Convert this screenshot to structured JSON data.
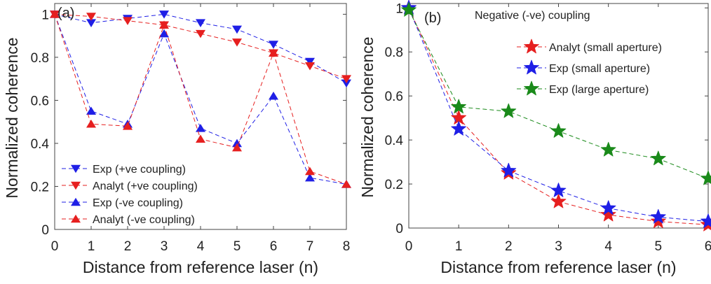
{
  "chart_data": [
    {
      "type": "line",
      "panel_label": "(a)",
      "title": "",
      "xlabel": "Distance from reference laser (n)",
      "ylabel": "Normalized coherence",
      "xlim": [
        0,
        8
      ],
      "ylim": [
        0,
        1.05
      ],
      "x_ticks": [
        0,
        1,
        2,
        3,
        4,
        5,
        6,
        7,
        8
      ],
      "y_ticks": [
        0,
        0.2,
        0.4,
        0.6,
        0.8,
        1
      ],
      "y_tick_labels": [
        "0",
        "0.2",
        "0.4",
        "0.6",
        "0.8",
        "1"
      ],
      "grid": false,
      "legend_position": "bottom-left",
      "x": [
        0,
        1,
        2,
        3,
        4,
        5,
        6,
        7,
        8
      ],
      "series": [
        {
          "name": "Exp (+ve coupling)",
          "color": "#1f1fe6",
          "marker": "triangle-down",
          "values": [
            1.0,
            0.96,
            0.98,
            1.0,
            0.96,
            0.93,
            0.86,
            0.78,
            0.68
          ]
        },
        {
          "name": "Analyt (+ve coupling)",
          "color": "#e61f1f",
          "marker": "triangle-down",
          "values": [
            1.0,
            0.99,
            0.97,
            0.95,
            0.91,
            0.87,
            0.82,
            0.76,
            0.7
          ]
        },
        {
          "name": "Exp (-ve coupling)",
          "color": "#1f1fe6",
          "marker": "triangle-up",
          "values": [
            1.0,
            0.55,
            0.49,
            0.91,
            0.47,
            0.4,
            0.62,
            0.24,
            0.21
          ]
        },
        {
          "name": "Analyt (-ve coupling)",
          "color": "#e61f1f",
          "marker": "triangle-up",
          "values": [
            1.0,
            0.49,
            0.48,
            0.95,
            0.42,
            0.38,
            0.82,
            0.27,
            0.21
          ]
        }
      ]
    },
    {
      "type": "line",
      "panel_label": "(b)",
      "title": "Negative (-ve) coupling",
      "xlabel": "Distance from reference laser (n)",
      "ylabel": "Normalized coherence",
      "xlim": [
        0,
        6
      ],
      "ylim": [
        0,
        1.02
      ],
      "x_ticks": [
        0,
        1,
        2,
        3,
        4,
        5,
        6
      ],
      "y_ticks": [
        0,
        0.2,
        0.4,
        0.6,
        0.8,
        1
      ],
      "y_tick_labels": [
        "0",
        "0.2",
        "0.4",
        "0.6",
        "0.8",
        "1"
      ],
      "grid": false,
      "legend_position": "top-right",
      "x": [
        0,
        1,
        2,
        3,
        4,
        5,
        6
      ],
      "series": [
        {
          "name": "Analyt (small aperture)",
          "color": "#e61f1f",
          "marker": "star",
          "values": [
            1.0,
            0.5,
            0.25,
            0.12,
            0.06,
            0.03,
            0.015
          ]
        },
        {
          "name": "Exp (small aperture)",
          "color": "#1f1fe6",
          "marker": "star",
          "values": [
            1.0,
            0.45,
            0.26,
            0.17,
            0.09,
            0.05,
            0.03
          ]
        },
        {
          "name": "Exp (large aperture)",
          "color": "#1a8a1a",
          "marker": "star",
          "values": [
            0.99,
            0.55,
            0.53,
            0.44,
            0.355,
            0.315,
            0.225
          ]
        }
      ]
    }
  ]
}
